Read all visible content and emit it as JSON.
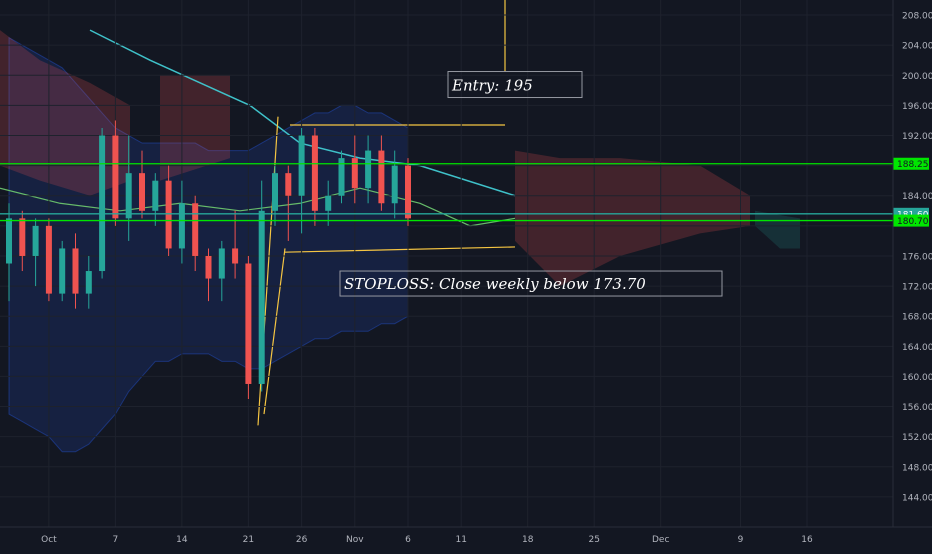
{
  "chart_data": {
    "type": "candlestick",
    "y_axis": {
      "min": 140,
      "max": 210,
      "side": "right",
      "ticks": [
        144,
        148,
        152,
        156,
        160,
        164,
        168,
        172,
        176,
        180,
        184,
        188,
        192,
        196,
        200,
        204,
        208
      ]
    },
    "x_axis": {
      "labels": [
        {
          "text": "Oct",
          "pos": 3
        },
        {
          "text": "7",
          "pos": 8
        },
        {
          "text": "14",
          "pos": 13
        },
        {
          "text": "21",
          "pos": 18
        },
        {
          "text": "26",
          "pos": 22
        },
        {
          "text": "Nov",
          "pos": 26
        },
        {
          "text": "6",
          "pos": 30
        },
        {
          "text": "11",
          "pos": 34
        },
        {
          "text": "18",
          "pos": 39
        },
        {
          "text": "25",
          "pos": 44
        },
        {
          "text": "Dec",
          "pos": 49
        },
        {
          "text": "9",
          "pos": 55
        },
        {
          "text": "16",
          "pos": 60
        }
      ]
    },
    "candles": [
      {
        "i": 0,
        "o": 175,
        "h": 183,
        "l": 170,
        "c": 181
      },
      {
        "i": 1,
        "o": 181,
        "h": 182,
        "l": 174,
        "c": 176
      },
      {
        "i": 2,
        "o": 176,
        "h": 181,
        "l": 172,
        "c": 180
      },
      {
        "i": 3,
        "o": 180,
        "h": 181,
        "l": 170,
        "c": 171
      },
      {
        "i": 4,
        "o": 171,
        "h": 178,
        "l": 170,
        "c": 177
      },
      {
        "i": 5,
        "o": 177,
        "h": 179,
        "l": 169,
        "c": 171
      },
      {
        "i": 6,
        "o": 171,
        "h": 176,
        "l": 169,
        "c": 174
      },
      {
        "i": 7,
        "o": 174,
        "h": 193,
        "l": 173,
        "c": 192
      },
      {
        "i": 8,
        "o": 192,
        "h": 194,
        "l": 180,
        "c": 181
      },
      {
        "i": 9,
        "o": 181,
        "h": 192,
        "l": 178,
        "c": 187
      },
      {
        "i": 10,
        "o": 187,
        "h": 190,
        "l": 181,
        "c": 182
      },
      {
        "i": 11,
        "o": 182,
        "h": 187,
        "l": 180,
        "c": 186
      },
      {
        "i": 12,
        "o": 186,
        "h": 188,
        "l": 176,
        "c": 177
      },
      {
        "i": 13,
        "o": 177,
        "h": 186,
        "l": 175,
        "c": 183
      },
      {
        "i": 14,
        "o": 183,
        "h": 184,
        "l": 174,
        "c": 176
      },
      {
        "i": 15,
        "o": 176,
        "h": 177,
        "l": 170,
        "c": 173
      },
      {
        "i": 16,
        "o": 173,
        "h": 178,
        "l": 170,
        "c": 177
      },
      {
        "i": 17,
        "o": 177,
        "h": 182,
        "l": 173,
        "c": 175
      },
      {
        "i": 18,
        "o": 175,
        "h": 176,
        "l": 157,
        "c": 159
      },
      {
        "i": 19,
        "o": 159,
        "h": 186,
        "l": 158,
        "c": 182
      },
      {
        "i": 20,
        "o": 182,
        "h": 188,
        "l": 180,
        "c": 187
      },
      {
        "i": 21,
        "o": 187,
        "h": 188,
        "l": 178,
        "c": 184
      },
      {
        "i": 22,
        "o": 184,
        "h": 193,
        "l": 179,
        "c": 192
      },
      {
        "i": 23,
        "o": 192,
        "h": 193,
        "l": 180,
        "c": 182
      },
      {
        "i": 24,
        "o": 182,
        "h": 186,
        "l": 180,
        "c": 184
      },
      {
        "i": 25,
        "o": 184,
        "h": 190,
        "l": 183,
        "c": 189
      },
      {
        "i": 26,
        "o": 189,
        "h": 192,
        "l": 183,
        "c": 185
      },
      {
        "i": 27,
        "o": 185,
        "h": 192,
        "l": 183,
        "c": 190
      },
      {
        "i": 28,
        "o": 190,
        "h": 192,
        "l": 182,
        "c": 183
      },
      {
        "i": 29,
        "o": 183,
        "h": 190,
        "l": 181,
        "c": 188
      },
      {
        "i": 30,
        "o": 188,
        "h": 189,
        "l": 180,
        "c": 181
      }
    ],
    "horizontal_levels": [
      {
        "value": 188.25,
        "label": "188.25",
        "color": "#00e600",
        "badge_text_color": "#131722"
      },
      {
        "value": 181.6,
        "label": "181.60",
        "color": "#26a69a",
        "badge_text_color": "#ffffff"
      },
      {
        "value": 180.7,
        "label": "180.70",
        "color": "#00e600",
        "badge_text_color": "#131722"
      }
    ],
    "annotations": [
      {
        "text": "Entry: 195",
        "value": 195
      },
      {
        "text": "STOPLOSS: Close weekly below 173.70",
        "value": 173.7
      }
    ],
    "colors": {
      "background": "#131722",
      "grid": "#1e222d",
      "up": "#26a69a",
      "down": "#ef5350",
      "axis_text": "#b2b5be",
      "yellow_lines": "#f5c542",
      "cloud_green": "rgba(38,166,154,0.18)",
      "cloud_red": "rgba(239,83,80,0.22)",
      "bollinger": "rgba(41,98,255,0.14)"
    }
  }
}
